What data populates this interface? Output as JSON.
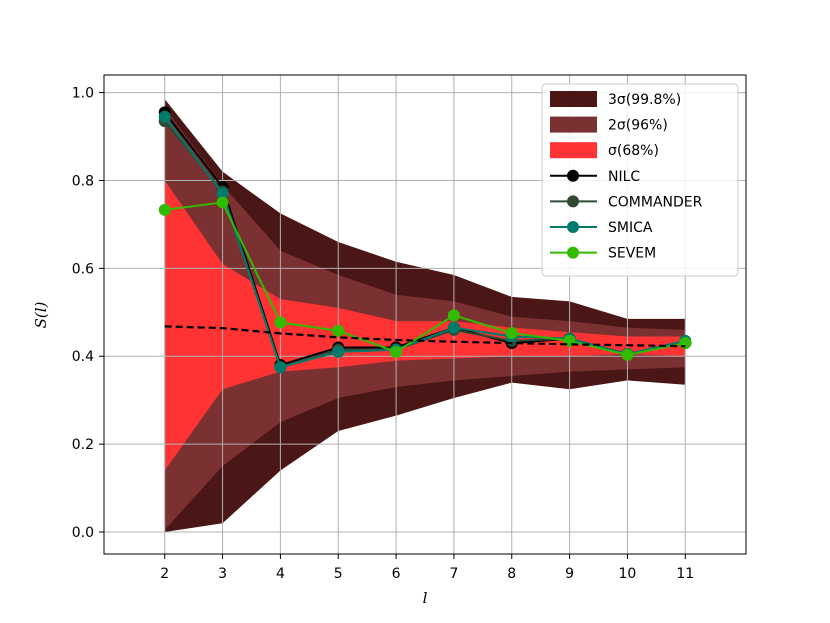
{
  "chart_data": {
    "type": "line",
    "title": "",
    "xlabel": "l",
    "ylabel": "S(l)",
    "xlim": [
      0.95,
      12.05
    ],
    "ylim": [
      -0.05,
      1.04
    ],
    "grid": true,
    "legend_position": "top-right",
    "x": [
      2,
      3,
      4,
      5,
      6,
      7,
      8,
      9,
      10,
      11
    ],
    "x_tick_labels": [
      "2",
      "3",
      "4",
      "5",
      "6",
      "7",
      "8",
      "9",
      "10",
      "11"
    ],
    "y_ticks": [
      0.0,
      0.2,
      0.4,
      0.6,
      0.8,
      1.0
    ],
    "y_tick_labels": [
      "0.0",
      "0.2",
      "0.4",
      "0.6",
      "0.8",
      "1.0"
    ],
    "bands": [
      {
        "name": "3σ(99.8%)",
        "name_base": "3σ",
        "name_note": "(99.8%)",
        "color": "#4b1616",
        "upper": [
          0.985,
          0.82,
          0.725,
          0.66,
          0.615,
          0.585,
          0.535,
          0.525,
          0.485,
          0.485
        ],
        "lower": [
          0.0,
          0.02,
          0.14,
          0.23,
          0.265,
          0.305,
          0.34,
          0.325,
          0.345,
          0.335
        ]
      },
      {
        "name": "2σ(96%)",
        "name_base": "2σ",
        "name_note": "(96%)",
        "color": "#7b3131",
        "upper": [
          0.965,
          0.79,
          0.64,
          0.585,
          0.54,
          0.525,
          0.49,
          0.48,
          0.465,
          0.46
        ],
        "lower": [
          0.005,
          0.15,
          0.25,
          0.305,
          0.33,
          0.345,
          0.355,
          0.365,
          0.37,
          0.375
        ]
      },
      {
        "name": "σ(68%)",
        "name_base": "σ",
        "name_note": "(68%)",
        "color": "#ff3333",
        "upper": [
          0.8,
          0.61,
          0.53,
          0.51,
          0.48,
          0.48,
          0.465,
          0.455,
          0.445,
          0.445
        ],
        "lower": [
          0.14,
          0.325,
          0.365,
          0.375,
          0.39,
          0.395,
          0.4,
          0.4,
          0.405,
          0.4
        ]
      }
    ],
    "expected": {
      "color": "#000000",
      "values": [
        0.468,
        0.464,
        0.452,
        0.443,
        0.437,
        0.433,
        0.43,
        0.427,
        0.425,
        0.423
      ]
    },
    "series": [
      {
        "name": "NILC",
        "color": "#000000",
        "values": [
          0.955,
          0.785,
          0.38,
          0.42,
          0.42,
          0.465,
          0.43,
          0.44,
          0.405,
          0.43
        ]
      },
      {
        "name": "COMMANDER",
        "color": "#2e4a34",
        "values": [
          0.935,
          0.775,
          0.375,
          0.415,
          0.415,
          0.46,
          0.435,
          0.44,
          0.405,
          0.43
        ]
      },
      {
        "name": "SMICA",
        "color": "#007a6a",
        "values": [
          0.945,
          0.77,
          0.375,
          0.41,
          0.415,
          0.465,
          0.445,
          0.44,
          0.405,
          0.435
        ]
      },
      {
        "name": "SEVEM",
        "color": "#33bb00",
        "values": [
          0.733,
          0.75,
          0.477,
          0.458,
          0.41,
          0.493,
          0.453,
          0.435,
          0.403,
          0.43
        ]
      }
    ]
  }
}
